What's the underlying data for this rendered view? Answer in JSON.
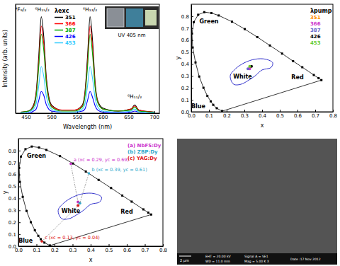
{
  "chart_data": [
    {
      "type": "line",
      "x_label": "Wavelength (nm)",
      "y_label": "Intensity (arb. units)",
      "xlim": [
        430,
        710
      ],
      "xticks": [
        450,
        500,
        550,
        600,
        650,
        700
      ],
      "ylim": [
        0,
        1.05
      ],
      "tick_labels": "x",
      "legend": "upper left",
      "legend_title": "λexc",
      "inset_label": "UV 405 nm",
      "annotations": [
        {
          "text": "⁴F₉/₂",
          "x": 440,
          "y": 0.98
        },
        {
          "text": "⁶H₁₅/₂",
          "x": 482,
          "y": 0.98
        },
        {
          "text": "⁶H₁₃/₂",
          "x": 575,
          "y": 0.98
        },
        {
          "text": "⁶H₁₁/₂",
          "x": 662,
          "y": 0.14
        }
      ],
      "x": [
        440,
        455,
        465,
        470,
        475,
        480,
        485,
        490,
        500,
        520,
        545,
        560,
        565,
        570,
        575,
        580,
        585,
        590,
        600,
        630,
        655,
        662,
        670,
        700
      ],
      "series": [
        {
          "name": "351",
          "color": "#000000",
          "values": [
            0.01,
            0.02,
            0.08,
            0.2,
            0.54,
            0.93,
            0.73,
            0.34,
            0.08,
            0.03,
            0.03,
            0.08,
            0.2,
            0.54,
            0.93,
            0.69,
            0.29,
            0.12,
            0.05,
            0.02,
            0.04,
            0.08,
            0.03,
            0.01
          ]
        },
        {
          "name": "366",
          "color": "#ff0000",
          "values": [
            0.01,
            0.02,
            0.07,
            0.18,
            0.48,
            0.84,
            0.66,
            0.31,
            0.07,
            0.03,
            0.03,
            0.07,
            0.18,
            0.48,
            0.84,
            0.62,
            0.26,
            0.11,
            0.04,
            0.02,
            0.04,
            0.07,
            0.03,
            0.01
          ]
        },
        {
          "name": "387",
          "color": "#00aa00",
          "values": [
            0.01,
            0.02,
            0.06,
            0.16,
            0.44,
            0.76,
            0.6,
            0.28,
            0.06,
            0.02,
            0.02,
            0.06,
            0.16,
            0.44,
            0.76,
            0.56,
            0.24,
            0.1,
            0.04,
            0.02,
            0.03,
            0.06,
            0.02,
            0.01
          ]
        },
        {
          "name": "426",
          "color": "#0000ff",
          "values": [
            0,
            0,
            0.02,
            0.04,
            0.12,
            0.21,
            0.17,
            0.08,
            0.02,
            0.01,
            0.01,
            0.02,
            0.04,
            0.12,
            0.21,
            0.15,
            0.07,
            0.03,
            0.01,
            0,
            0.01,
            0.02,
            0.01,
            0
          ]
        },
        {
          "name": "453",
          "color": "#33ccff",
          "values": [
            0,
            0.01,
            0.04,
            0.09,
            0.26,
            0.45,
            0.35,
            0.16,
            0.04,
            0.01,
            0.01,
            0.04,
            0.09,
            0.26,
            0.45,
            0.33,
            0.14,
            0.06,
            0.02,
            0.01,
            0.02,
            0.04,
            0.01,
            0
          ]
        }
      ]
    },
    {
      "type": "scatter",
      "x_label": "x",
      "y_label": "y",
      "xlim": [
        0,
        0.8
      ],
      "xticks": [
        {
          "value": 0,
          "label": "0.0"
        },
        0.1,
        0.2,
        0.3,
        0.4,
        0.5,
        0.6,
        0.7,
        0.8
      ],
      "ylim": [
        0,
        0.9
      ],
      "yticks": [
        {
          "value": 0,
          "label": "0.0"
        },
        0.1,
        0.2,
        0.3,
        0.4,
        0.5,
        0.6,
        0.7,
        0.8
      ],
      "legend": "upper right",
      "legend_title": "λpump",
      "annotations": [
        {
          "text": "Green",
          "x": 0.1,
          "y": 0.74
        },
        {
          "text": "Red",
          "x": 0.6,
          "y": 0.27
        },
        {
          "text": "Blue",
          "x": 0.04,
          "y": 0.03
        },
        {
          "text": "White",
          "x": 0.29,
          "y": 0.28
        }
      ],
      "region": {
        "color": "#3333cc",
        "x": [
          0.22,
          0.25,
          0.3,
          0.36,
          0.42,
          0.46,
          0.45,
          0.4,
          0.36,
          0.32,
          0.28,
          0.24,
          0.22
        ],
        "y": [
          0.3,
          0.36,
          0.41,
          0.44,
          0.44,
          0.41,
          0.37,
          0.35,
          0.3,
          0.26,
          0.23,
          0.23,
          0.3
        ]
      },
      "series": [
        {
          "type": "line",
          "marker": "square",
          "color": "#000000",
          "x": [
            0.174,
            0.144,
            0.124,
            0.11,
            0.091,
            0.069,
            0.045,
            0.024,
            0.008,
            0.004,
            0.014,
            0.039,
            0.074,
            0.114,
            0.155,
            0.23,
            0.302,
            0.373,
            0.444,
            0.513,
            0.575,
            0.627,
            0.692,
            0.719,
            0.735,
            0.174
          ],
          "values": [
            0.005,
            0.03,
            0.058,
            0.087,
            0.133,
            0.201,
            0.295,
            0.413,
            0.538,
            0.655,
            0.75,
            0.812,
            0.834,
            0.826,
            0.806,
            0.754,
            0.692,
            0.625,
            0.555,
            0.487,
            0.424,
            0.373,
            0.308,
            0.281,
            0.265,
            0.005
          ]
        },
        {
          "name": "351",
          "color": "#ff8c00",
          "marker": "circle",
          "x": [
            0.33
          ],
          "values": [
            0.37
          ]
        },
        {
          "name": "366",
          "color": "#cc33cc",
          "marker": "circle",
          "x": [
            0.33
          ],
          "values": [
            0.36
          ]
        },
        {
          "name": "387",
          "color": "#6666cc",
          "marker": "circle",
          "x": [
            0.32
          ],
          "values": [
            0.36
          ]
        },
        {
          "name": "426",
          "color": "#000000",
          "marker": "circle",
          "x": [
            0.34
          ],
          "values": [
            0.38
          ]
        },
        {
          "name": "453",
          "color": "#66cc33",
          "marker": "circle",
          "x": [
            0.33
          ],
          "values": [
            0.38
          ]
        }
      ]
    },
    {
      "type": "scatter",
      "x_label": "x",
      "y_label": "y",
      "xlim": [
        0,
        0.8
      ],
      "xticks": [
        {
          "value": 0,
          "label": "0.0"
        },
        0.1,
        0.2,
        0.3,
        0.4,
        0.5,
        0.6,
        0.7,
        0.8
      ],
      "ylim": [
        0,
        0.9
      ],
      "yticks": [
        {
          "value": 0,
          "label": "0.0"
        },
        0.1,
        0.2,
        0.3,
        0.4,
        0.5,
        0.6,
        0.7,
        0.8
      ],
      "legend": "upper right",
      "annotations": [
        {
          "text": "Green",
          "x": 0.1,
          "y": 0.74
        },
        {
          "text": "Red",
          "x": 0.6,
          "y": 0.27
        },
        {
          "text": "Blue",
          "x": 0.04,
          "y": 0.03
        },
        {
          "text": "White",
          "x": 0.29,
          "y": 0.28
        }
      ],
      "region": {
        "color": "#3333cc",
        "x": [
          0.22,
          0.25,
          0.3,
          0.36,
          0.42,
          0.46,
          0.45,
          0.4,
          0.36,
          0.32,
          0.28,
          0.24,
          0.22
        ],
        "y": [
          0.3,
          0.36,
          0.41,
          0.44,
          0.44,
          0.41,
          0.37,
          0.35,
          0.3,
          0.26,
          0.23,
          0.23,
          0.3
        ]
      },
      "dominant_points": {
        "x": [
          0.29,
          0.39,
          0.13
        ],
        "values": [
          0.69,
          0.61,
          0.04
        ],
        "labels": [
          "a (xc = 0.29, yc = 0.69)",
          "b (xc = 0.39, yc = 0.61)",
          "c (xc = 0.13, yc = 0.04)"
        ],
        "colors": [
          "#cc33cc",
          "#33aacc",
          "#e02020"
        ],
        "line_style": "dotted"
      },
      "series": [
        {
          "type": "line",
          "marker": "square",
          "color": "#000000",
          "x": [
            0.174,
            0.144,
            0.124,
            0.11,
            0.091,
            0.069,
            0.045,
            0.024,
            0.008,
            0.004,
            0.014,
            0.039,
            0.074,
            0.114,
            0.155,
            0.23,
            0.302,
            0.373,
            0.444,
            0.513,
            0.575,
            0.627,
            0.692,
            0.719,
            0.735,
            0.174
          ],
          "values": [
            0.005,
            0.03,
            0.058,
            0.087,
            0.133,
            0.201,
            0.295,
            0.413,
            0.538,
            0.655,
            0.75,
            0.812,
            0.834,
            0.826,
            0.806,
            0.754,
            0.692,
            0.625,
            0.555,
            0.487,
            0.424,
            0.373,
            0.308,
            0.281,
            0.265,
            0.005
          ]
        },
        {
          "name": "(a) NbFS:Dy",
          "color": "#cc33cc",
          "marker": "circle",
          "x": [
            0.33
          ],
          "values": [
            0.37
          ]
        },
        {
          "name": "(b) ZBP:Dy",
          "color": "#33aacc",
          "marker": "circle",
          "x": [
            0.34
          ],
          "values": [
            0.36
          ]
        },
        {
          "name": "(c) YAG:Dy",
          "color": "#e02020",
          "marker": "circle",
          "x": [
            0.33
          ],
          "values": [
            0.34
          ]
        }
      ]
    }
  ],
  "sem_image": {
    "scale_bar": "2 µm",
    "info": [
      "EHT = 20.00 kV",
      "Signal A = SE1",
      "Date :17 Nov 2012",
      "WD = 11.0 mm",
      "Mag = 5.00 K X"
    ]
  }
}
